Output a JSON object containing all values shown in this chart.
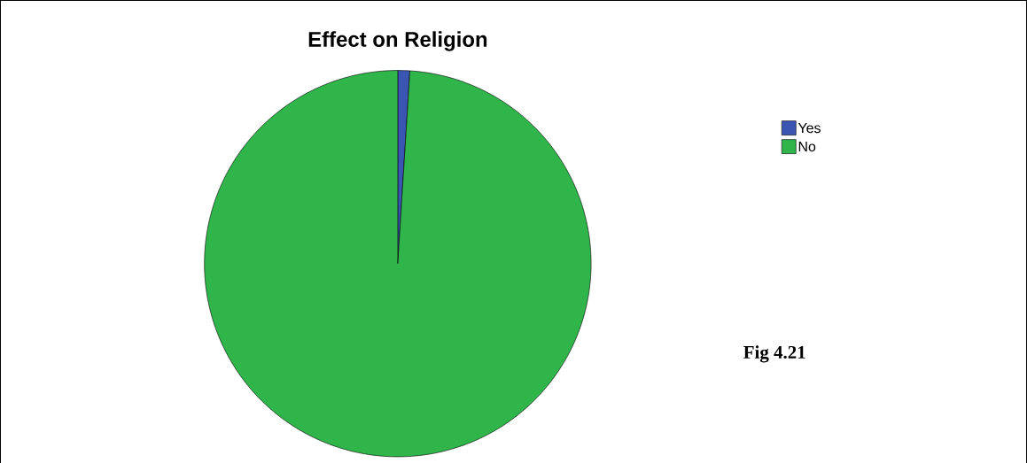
{
  "chart_data": {
    "type": "pie",
    "title": "Effect on Religion",
    "categories": [
      "Yes",
      "No"
    ],
    "values": [
      1,
      99
    ],
    "colors": [
      "#3a56b2",
      "#2fb54a"
    ],
    "legend": "top right",
    "annotations": [
      "Fig 4.21"
    ]
  }
}
